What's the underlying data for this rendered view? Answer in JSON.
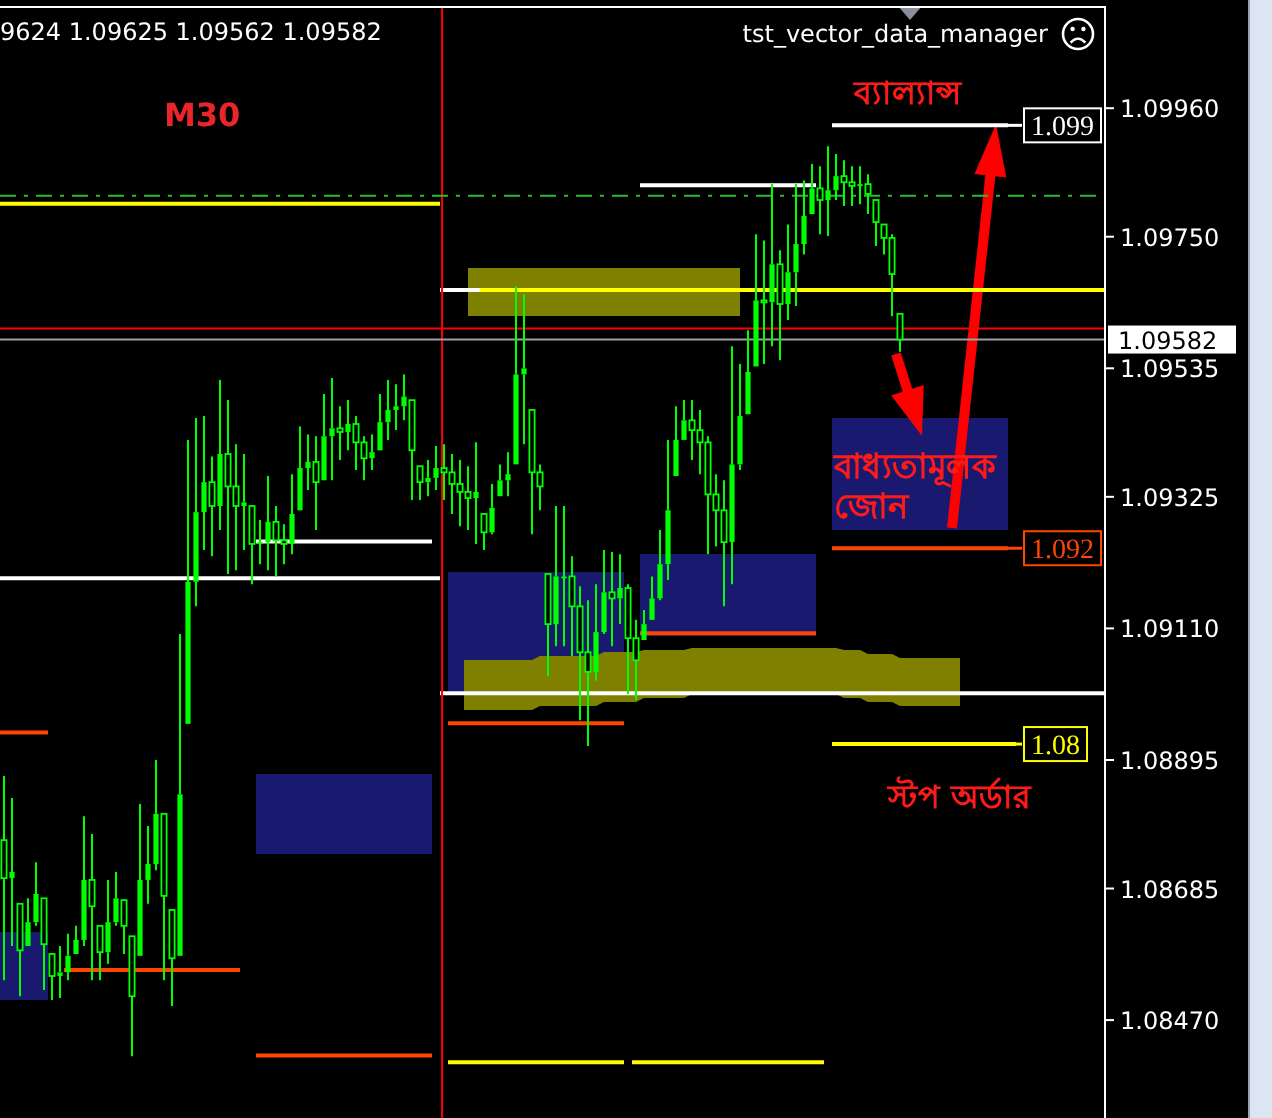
{
  "chart_data": {
    "type": "candlestick",
    "color": "#00ff00",
    "categories": [
      null,
      null,
      null,
      null,
      null,
      null,
      null,
      null,
      null,
      null,
      null,
      null,
      null,
      null,
      null,
      null,
      null,
      null,
      null,
      null,
      null,
      null,
      null,
      null,
      null,
      null,
      null,
      null,
      null,
      null,
      null,
      null,
      null,
      null,
      null,
      null,
      null,
      null,
      null,
      null,
      null,
      null,
      null,
      null,
      null,
      null,
      null,
      null,
      null,
      null,
      null,
      null,
      null,
      null,
      null,
      null,
      null,
      null,
      null,
      null,
      null,
      null,
      null,
      null,
      null,
      null,
      null,
      null,
      null,
      null,
      null,
      null,
      null,
      null,
      null,
      null,
      null,
      null,
      null,
      null,
      null,
      null,
      null,
      null,
      null,
      null,
      null,
      null,
      null,
      null,
      null,
      null,
      null,
      null,
      null,
      null,
      null,
      null,
      null,
      null,
      null,
      null,
      null,
      null,
      null,
      null,
      null,
      null,
      null,
      null,
      null,
      null,
      null,
      null,
      null,
      null,
      null,
      null,
      null,
      null,
      null,
      null,
      null,
      null,
      null,
      null,
      null,
      null,
      null,
      null,
      null,
      null,
      null,
      null,
      null,
      null,
      null,
      null
    ],
    "ohlc": [
      [
        1.08764,
        1.08869,
        1.08535,
        1.08702
      ],
      [
        1.08702,
        1.08833,
        1.08591,
        1.08712
      ],
      [
        1.0866,
        1.0866,
        1.08509,
        1.08584
      ],
      [
        1.08591,
        1.08669,
        1.08591,
        1.0863
      ],
      [
        1.0863,
        1.08728,
        1.08624,
        1.08676
      ],
      [
        1.08669,
        1.08669,
        1.08519,
        1.08594
      ],
      [
        1.08578,
        1.08578,
        1.08503,
        1.08542
      ],
      [
        1.08542,
        1.08591,
        1.08506,
        1.08548
      ],
      [
        1.08548,
        1.08611,
        1.08535,
        1.08575
      ],
      [
        1.08578,
        1.08624,
        1.08578,
        1.08601
      ],
      [
        1.08601,
        1.08803,
        1.08591,
        1.08699
      ],
      [
        1.08699,
        1.08774,
        1.08535,
        1.08656
      ],
      [
        1.08624,
        1.08624,
        1.08535,
        1.08581
      ],
      [
        1.08581,
        1.08699,
        1.08562,
        1.0863
      ],
      [
        1.0863,
        1.08712,
        1.08624,
        1.08669
      ],
      [
        1.08666,
        1.08666,
        1.08578,
        1.08624
      ],
      [
        1.08607,
        1.08607,
        1.08411,
        1.08509
      ],
      [
        1.08575,
        1.08823,
        1.08575,
        1.08699
      ],
      [
        1.08699,
        1.08787,
        1.0866,
        1.08725
      ],
      [
        1.08725,
        1.08895,
        1.08715,
        1.08807
      ],
      [
        1.08807,
        1.08807,
        1.08535,
        1.08673
      ],
      [
        1.0865,
        1.0865,
        1.08493,
        1.08571
      ],
      [
        1.08575,
        1.09101,
        1.08575,
        1.08839
      ],
      [
        1.08954,
        1.09418,
        1.08954,
        1.09186
      ],
      [
        1.09186,
        1.09454,
        1.09146,
        1.093
      ],
      [
        1.093,
        1.09457,
        1.09238,
        1.09349
      ],
      [
        1.09349,
        1.09391,
        1.09228,
        1.0931
      ],
      [
        1.0931,
        1.09516,
        1.09271,
        1.09395
      ],
      [
        1.09395,
        1.09483,
        1.09199,
        1.09342
      ],
      [
        1.09342,
        1.09411,
        1.09205,
        1.0931
      ],
      [
        1.0931,
        1.09395,
        1.09238,
        1.09316
      ],
      [
        1.0931,
        1.0931,
        1.09182,
        1.09248
      ],
      [
        1.09248,
        1.09287,
        1.09215,
        1.09251
      ],
      [
        1.09251,
        1.09359,
        1.09205,
        1.09284
      ],
      [
        1.09284,
        1.0931,
        1.09195,
        1.09254
      ],
      [
        1.09254,
        1.0928,
        1.09215,
        1.09248
      ],
      [
        1.09248,
        1.09362,
        1.09231,
        1.09297
      ],
      [
        1.09303,
        1.0944,
        1.09303,
        1.09372
      ],
      [
        1.09372,
        1.09427,
        1.09336,
        1.09382
      ],
      [
        1.09382,
        1.09424,
        1.09271,
        1.09349
      ],
      [
        1.09352,
        1.09493,
        1.09352,
        1.09424
      ],
      [
        1.09424,
        1.09519,
        1.09352,
        1.09437
      ],
      [
        1.09437,
        1.09473,
        1.09385,
        1.09431
      ],
      [
        1.09431,
        1.09483,
        1.09401,
        1.09444
      ],
      [
        1.09444,
        1.09457,
        1.09369,
        1.09414
      ],
      [
        1.09414,
        1.09424,
        1.09352,
        1.09388
      ],
      [
        1.09388,
        1.09427,
        1.09369,
        1.09398
      ],
      [
        1.09401,
        1.09493,
        1.09401,
        1.09447
      ],
      [
        1.09447,
        1.09516,
        1.09418,
        1.09467
      ],
      [
        1.09467,
        1.09509,
        1.09434,
        1.09473
      ],
      [
        1.09473,
        1.09525,
        1.0945,
        1.09489
      ],
      [
        1.09483,
        1.09483,
        1.0932,
        1.09401
      ],
      [
        1.09375,
        1.09375,
        1.0932,
        1.09349
      ],
      [
        1.09349,
        1.09385,
        1.09326,
        1.09356
      ],
      [
        1.09356,
        1.09408,
        1.09336,
        1.09372
      ],
      [
        1.09372,
        1.09411,
        1.0932,
        1.09365
      ],
      [
        1.09365,
        1.09395,
        1.09297,
        1.09346
      ],
      [
        1.09346,
        1.09385,
        1.09277,
        1.09333
      ],
      [
        1.09333,
        1.09375,
        1.09271,
        1.09323
      ],
      [
        1.09323,
        1.09414,
        1.09248,
        1.09333
      ],
      [
        1.09297,
        1.09297,
        1.09238,
        1.09267
      ],
      [
        1.09267,
        1.09346,
        1.09264,
        1.09307
      ],
      [
        1.09326,
        1.09378,
        1.09326,
        1.09352
      ],
      [
        1.09352,
        1.09398,
        1.09326,
        1.09362
      ],
      [
        1.09378,
        1.09669,
        1.09378,
        1.09525
      ],
      [
        1.09525,
        1.09656,
        1.09411,
        1.09535
      ],
      [
        1.09467,
        1.09467,
        1.09264,
        1.09365
      ],
      [
        1.09365,
        1.09378,
        1.09303,
        1.09342
      ],
      [
        1.09199,
        1.09199,
        1.09032,
        1.09117
      ],
      [
        1.09117,
        1.0931,
        1.09081,
        1.09195
      ],
      [
        1.09195,
        1.0931,
        1.09081,
        1.09195
      ],
      [
        1.09195,
        1.09228,
        1.09065,
        1.09146
      ],
      [
        1.09146,
        1.09179,
        1.0896,
        1.09071
      ],
      [
        1.09071,
        1.09156,
        1.08918,
        1.09039
      ],
      [
        1.09039,
        1.09182,
        1.09025,
        1.09104
      ],
      [
        1.09104,
        1.09238,
        1.09101,
        1.09169
      ],
      [
        1.09169,
        1.09235,
        1.09081,
        1.09159
      ],
      [
        1.09159,
        1.09231,
        1.09117,
        1.09176
      ],
      [
        1.09176,
        1.09182,
        1.09003,
        1.09094
      ],
      [
        1.09094,
        1.09124,
        1.08993,
        1.09058
      ],
      [
        1.09091,
        1.0914,
        1.09091,
        1.09117
      ],
      [
        1.09124,
        1.09195,
        1.09124,
        1.09159
      ],
      [
        1.09159,
        1.09271,
        1.09156,
        1.09215
      ],
      [
        1.09215,
        1.09418,
        1.09189,
        1.09303
      ],
      [
        1.09359,
        1.09473,
        1.09359,
        1.09418
      ],
      [
        1.09418,
        1.09483,
        1.09418,
        1.0945
      ],
      [
        1.0945,
        1.09483,
        1.09385,
        1.09434
      ],
      [
        1.09434,
        1.09467,
        1.09362,
        1.09414
      ],
      [
        1.09414,
        1.09424,
        1.09231,
        1.09329
      ],
      [
        1.09329,
        1.09362,
        1.09244,
        1.09303
      ],
      [
        1.09303,
        1.09352,
        1.09146,
        1.09251
      ],
      [
        1.09251,
        1.09571,
        1.09182,
        1.09378
      ],
      [
        1.09378,
        1.09542,
        1.09369,
        1.09457
      ],
      [
        1.0946,
        1.09597,
        1.0946,
        1.09529
      ],
      [
        1.09538,
        1.09754,
        1.09538,
        1.09646
      ],
      [
        1.09646,
        1.09744,
        1.09542,
        1.09643
      ],
      [
        1.09643,
        1.09836,
        1.09571,
        1.09705
      ],
      [
        1.09705,
        1.09728,
        1.09548,
        1.0964
      ],
      [
        1.0964,
        1.0977,
        1.09614,
        1.09692
      ],
      [
        1.09692,
        1.09836,
        1.09637,
        1.09738
      ],
      [
        1.09738,
        1.09842,
        1.09721,
        1.09784
      ],
      [
        1.09787,
        1.09869,
        1.09787,
        1.09829
      ],
      [
        1.09829,
        1.09865,
        1.09754,
        1.0981
      ],
      [
        1.0981,
        1.09898,
        1.09751,
        1.09826
      ],
      [
        1.09826,
        1.09885,
        1.0981,
        1.09849
      ],
      [
        1.09849,
        1.09875,
        1.098,
        1.09839
      ],
      [
        1.09839,
        1.09865,
        1.098,
        1.09833
      ],
      [
        1.09833,
        1.09865,
        1.09803,
        1.09836
      ],
      [
        1.09836,
        1.09852,
        1.09787,
        1.0982
      ],
      [
        1.0981,
        1.0981,
        1.09735,
        1.09774
      ],
      [
        1.0977,
        1.0977,
        1.09721,
        1.09748
      ],
      [
        1.09748,
        1.09754,
        1.0962,
        1.09689
      ],
      [
        1.09624,
        1.09625,
        1.09562,
        1.09582
      ],
      null,
      null,
      null,
      null,
      null,
      null,
      null,
      null,
      null,
      null,
      null,
      null,
      null,
      null,
      null,
      null,
      null,
      null,
      null,
      null,
      null,
      null,
      null,
      null,
      null
    ],
    "series": [
      {
        "type": "line",
        "color": "#ffffff",
        "values": [
          1.09192,
          1.09192,
          1.09192,
          1.09192,
          1.09192,
          1.09192,
          1.09192,
          1.09192,
          1.09192,
          1.09192,
          1.09192,
          1.09192,
          1.09192,
          1.09192,
          1.09192,
          1.09192,
          1.09192,
          1.09192,
          1.09192,
          1.09192,
          1.09192,
          1.09192,
          1.09192,
          1.09192,
          1.09192,
          1.09192,
          1.09192,
          1.09192,
          1.09192,
          1.09192,
          1.09192,
          1.09192,
          1.09192,
          1.09192,
          1.09192,
          1.09192,
          1.09192,
          1.09192,
          1.09192,
          1.09192,
          1.09192,
          1.09192,
          1.09192,
          1.09192,
          1.09192,
          1.09192,
          1.09192,
          1.09192,
          1.09192,
          1.09192,
          1.09192,
          1.09192,
          1.09192,
          1.09192,
          1.09192,
          null,
          null,
          null,
          null,
          null,
          null,
          null,
          null,
          null,
          null,
          null,
          null,
          null,
          null,
          null,
          null,
          null,
          null,
          null,
          null,
          null,
          null,
          null,
          null,
          null,
          null,
          null,
          null,
          null,
          null,
          null,
          null,
          null,
          null,
          null,
          null,
          null,
          null,
          null,
          null,
          null,
          null,
          null,
          null,
          null,
          null,
          null,
          null,
          null,
          null,
          null,
          null,
          null,
          null,
          null,
          null,
          null,
          null,
          null,
          null,
          null,
          null,
          null,
          null,
          null,
          null,
          null,
          null,
          null,
          null,
          null,
          null,
          null,
          null,
          null,
          null,
          null,
          null,
          null,
          null,
          null,
          null,
          null
        ]
      },
      {
        "type": "line",
        "color": "#ffff00",
        "values": [
          1.09804,
          1.09804,
          1.09804,
          1.09804,
          1.09804,
          1.09804,
          1.09804,
          1.09804,
          1.09804,
          1.09804,
          1.09804,
          1.09804,
          1.09804,
          1.09804,
          1.09804,
          1.09804,
          1.09804,
          1.09804,
          1.09804,
          1.09804,
          1.09804,
          1.09804,
          1.09804,
          1.09804,
          1.09804,
          1.09804,
          1.09804,
          1.09804,
          1.09804,
          1.09804,
          1.09804,
          1.09804,
          1.09804,
          1.09804,
          1.09804,
          1.09804,
          1.09804,
          1.09804,
          1.09804,
          1.09804,
          1.09804,
          1.09804,
          1.09804,
          1.09804,
          1.09804,
          1.09804,
          1.09804,
          1.09804,
          1.09804,
          1.09804,
          1.09804,
          1.09804,
          1.09804,
          1.09804,
          1.09804,
          null,
          1.08401,
          1.08401,
          1.08401,
          1.08401,
          1.08401,
          1.08401,
          1.08401,
          1.08401,
          1.08401,
          1.08401,
          1.08401,
          1.08401,
          1.08401,
          1.08401,
          1.08401,
          1.08401,
          1.08401,
          1.08401,
          1.08401,
          1.08401,
          1.08401,
          1.08401,
          null,
          1.08401,
          1.08401,
          1.08401,
          1.08401,
          1.08401,
          1.08401,
          1.08401,
          1.08401,
          1.08401,
          1.08401,
          1.08401,
          1.08401,
          1.08401,
          1.08401,
          1.08401,
          1.08401,
          1.08401,
          1.08401,
          1.08401,
          1.08401,
          1.08401,
          1.08401,
          1.08401,
          1.08401,
          null,
          1.08921,
          1.08921,
          1.08921,
          1.08921,
          1.08921,
          1.08921,
          1.08921,
          1.08921,
          1.08921,
          1.08921,
          1.08921,
          1.08921,
          1.08921,
          1.08921,
          1.08921,
          1.08921,
          1.08921,
          1.08921,
          1.08921,
          1.08921,
          1.08921,
          1.08921,
          1.08921,
          null,
          null,
          null,
          null,
          null,
          null,
          null,
          null,
          null,
          null,
          null
        ]
      },
      {
        "type": "line",
        "color": "#ffff00",
        "values": [
          null,
          null,
          null,
          null,
          null,
          null,
          null,
          null,
          null,
          null,
          null,
          null,
          null,
          null,
          null,
          null,
          null,
          null,
          null,
          null,
          null,
          null,
          null,
          null,
          null,
          null,
          null,
          null,
          null,
          null,
          null,
          null,
          null,
          null,
          null,
          null,
          null,
          null,
          null,
          null,
          null,
          null,
          null,
          null,
          null,
          null,
          null,
          null,
          null,
          null,
          null,
          null,
          null,
          null,
          null,
          null,
          null,
          null,
          null,
          null,
          1.09663,
          1.09663,
          1.09663,
          1.09663,
          1.09663,
          1.09663,
          1.09663,
          1.09663,
          1.09663,
          1.09663,
          1.09663,
          1.09663,
          1.09663,
          1.09663,
          1.09663,
          1.09663,
          1.09663,
          1.09663,
          1.09663,
          1.09663,
          1.09663,
          1.09663,
          1.09663,
          1.09663,
          1.09663,
          1.09663,
          1.09663,
          1.09663,
          1.09663,
          1.09663,
          1.09663,
          1.09663,
          1.09663,
          1.09663,
          1.09663,
          1.09663,
          1.09663,
          1.09663,
          1.09663,
          1.09663,
          1.09663,
          1.09663,
          1.09663,
          1.09663,
          1.09663,
          1.09663,
          1.09663,
          1.09663,
          1.09663,
          1.09663,
          1.09663,
          1.09663,
          1.09663,
          1.09663,
          1.09663,
          1.09663,
          1.09663,
          1.09663,
          1.09663,
          1.09663,
          1.09663,
          1.09663,
          1.09663,
          1.09663,
          1.09663,
          1.09663,
          1.09663,
          1.09663,
          1.09663,
          1.09663,
          1.09663,
          1.09663,
          1.09663,
          1.09663,
          1.09663,
          1.09663,
          1.09663,
          1.09663
        ]
      },
      {
        "type": "line",
        "color": "#ffffff",
        "values": [
          null,
          null,
          null,
          null,
          null,
          null,
          null,
          null,
          null,
          null,
          null,
          null,
          null,
          null,
          null,
          null,
          null,
          null,
          null,
          null,
          null,
          null,
          null,
          null,
          null,
          null,
          null,
          null,
          null,
          null,
          null,
          null,
          null,
          null,
          null,
          null,
          null,
          null,
          null,
          null,
          null,
          null,
          null,
          null,
          null,
          null,
          null,
          null,
          null,
          null,
          null,
          null,
          null,
          null,
          null,
          1.09004,
          1.09004,
          1.09004,
          1.09004,
          1.09004,
          1.09004,
          1.09004,
          1.09004,
          1.09004,
          1.09004,
          1.09004,
          1.09004,
          1.09004,
          1.09004,
          1.09004,
          1.09004,
          1.09004,
          1.09004,
          1.09004,
          1.09004,
          1.09004,
          1.09004,
          1.09004,
          1.09004,
          1.09004,
          1.09004,
          1.09004,
          1.09004,
          1.09004,
          1.09004,
          1.09004,
          1.09004,
          1.09004,
          1.09004,
          1.09004,
          1.09004,
          1.09004,
          1.09004,
          1.09004,
          1.09004,
          1.09004,
          1.09004,
          1.09004,
          1.09004,
          1.09004,
          1.09004,
          1.09004,
          1.09004,
          1.09004,
          1.09004,
          1.09004,
          1.09004,
          1.09004,
          1.09004,
          1.09004,
          1.09004,
          1.09004,
          1.09004,
          1.09004,
          1.09004,
          1.09004,
          1.09004,
          1.09004,
          1.09004,
          1.09004,
          1.09004,
          1.09004,
          1.09004,
          1.09004,
          1.09004,
          1.09004,
          1.09004,
          1.09004,
          1.09004,
          1.09004,
          1.09004,
          1.09004,
          1.09004,
          1.09004,
          1.09004,
          1.09004,
          1.09004,
          1.09004
        ]
      },
      {
        "type": "line",
        "color": "#ff4500",
        "values": [
          1.0894,
          1.0894,
          1.0894,
          1.0894,
          1.0894,
          1.0894,
          null,
          null,
          1.08552,
          1.08552,
          1.08552,
          1.08552,
          1.08552,
          1.08552,
          1.08552,
          1.08552,
          1.08552,
          1.08552,
          1.08552,
          1.08552,
          1.08552,
          1.08552,
          1.08552,
          1.08552,
          1.08552,
          1.08552,
          1.08552,
          1.08552,
          1.08552,
          1.08552,
          null,
          null,
          1.08412,
          1.08412,
          1.08412,
          1.08412,
          1.08412,
          1.08412,
          1.08412,
          1.08412,
          1.08412,
          1.08412,
          1.08412,
          1.08412,
          1.08412,
          1.08412,
          1.08412,
          1.08412,
          1.08412,
          1.08412,
          1.08412,
          1.08412,
          1.08412,
          1.08412,
          null,
          null,
          1.08955,
          1.08955,
          1.08955,
          1.08955,
          1.08955,
          1.08955,
          1.08955,
          1.08955,
          1.08955,
          1.08955,
          1.08955,
          1.08955,
          1.08955,
          1.08955,
          1.08955,
          1.08955,
          1.08955,
          1.08955,
          1.08955,
          1.08955,
          1.08955,
          1.08955,
          null,
          null,
          1.09102,
          1.09102,
          1.09102,
          1.09102,
          1.09102,
          1.09102,
          1.09102,
          1.09102,
          1.09102,
          1.09102,
          1.09102,
          1.09102,
          1.09102,
          1.09102,
          1.09102,
          1.09102,
          1.09102,
          1.09102,
          1.09102,
          1.09102,
          1.09102,
          1.09102,
          null,
          null,
          1.09241,
          1.09241,
          1.09241,
          1.09241,
          1.09241,
          1.09241,
          1.09241,
          1.09241,
          1.09241,
          1.09241,
          1.09241,
          1.09241,
          1.09241,
          1.09241,
          1.09241,
          1.09241,
          1.09241,
          1.09241,
          1.09241,
          1.09241,
          1.09241,
          1.09241,
          null,
          null,
          null,
          null,
          null,
          null,
          null,
          null,
          null,
          null,
          null,
          null
        ]
      },
      {
        "type": "line",
        "color": "#ffffff",
        "values": [
          null,
          null,
          null,
          null,
          null,
          null,
          null,
          null,
          null,
          null,
          null,
          null,
          null,
          null,
          null,
          null,
          null,
          null,
          null,
          null,
          null,
          null,
          null,
          null,
          null,
          null,
          null,
          null,
          null,
          null,
          null,
          null,
          1.09252,
          1.09252,
          1.09252,
          1.09252,
          1.09252,
          1.09252,
          1.09252,
          1.09252,
          1.09252,
          1.09252,
          1.09252,
          1.09252,
          1.09252,
          1.09252,
          1.09252,
          1.09252,
          1.09252,
          1.09252,
          1.09252,
          1.09252,
          1.09252,
          1.09252,
          null,
          1.09663,
          1.09663,
          1.09663,
          1.09663,
          1.09663,
          null,
          null,
          null,
          null,
          null,
          null,
          null,
          null,
          null,
          null,
          null,
          null,
          null,
          null,
          null,
          null,
          null,
          null,
          null,
          null,
          1.09834,
          1.09834,
          1.09834,
          1.09834,
          1.09834,
          1.09834,
          1.09834,
          1.09834,
          1.09834,
          1.09834,
          1.09834,
          1.09834,
          1.09834,
          1.09834,
          1.09834,
          1.09834,
          1.09834,
          1.09834,
          1.09834,
          1.09834,
          1.09834,
          1.09834,
          null,
          null,
          1.09932,
          1.09932,
          1.09932,
          1.09932,
          1.09932,
          1.09932,
          1.09932,
          1.09932,
          1.09932,
          1.09932,
          1.09932,
          1.09932,
          1.09932,
          1.09932,
          1.09932,
          1.09932,
          1.09932,
          1.09932,
          1.09932,
          1.09932,
          1.09932,
          1.09932,
          null,
          null,
          null,
          null,
          null,
          null,
          null,
          null,
          null,
          null,
          null,
          null
        ]
      }
    ],
    "ylim": [
      1.0831,
      1.10127
    ],
    "yticks": [
      {
        "value": 1.0996,
        "label": "1.09960"
      },
      {
        "value": 1.0975,
        "label": "1.09750"
      },
      1.09535,
      1.09325,
      {
        "value": 1.0911,
        "label": "1.09110"
      },
      1.08895,
      1.08685,
      {
        "value": 1.0847,
        "label": "1.08470"
      }
    ],
    "ref_lines": [
      {
        "axis": "y",
        "value": 1.09817,
        "color": "#2eb82e",
        "line_style": "dashed"
      },
      {
        "axis": "y",
        "value": 1.096,
        "color": "#ff0000"
      },
      {
        "axis": "y",
        "value": 1.09582,
        "color": "#9aa0a6",
        "label": "1.09582"
      }
    ],
    "annotations": [
      "9624 1.09625 1.09562 1.09582",
      "M30",
      "tst_vector_data_manager",
      "ব্যাল্যান্স",
      "বাধ্যতামূলক জোন",
      "স্টপ অর্ডার",
      {
        "text": "1.099",
        "y": 1.09932
      },
      {
        "text": "1.092",
        "y": 1.09241
      },
      {
        "text": "1.08",
        "y": 1.08921
      }
    ]
  }
}
